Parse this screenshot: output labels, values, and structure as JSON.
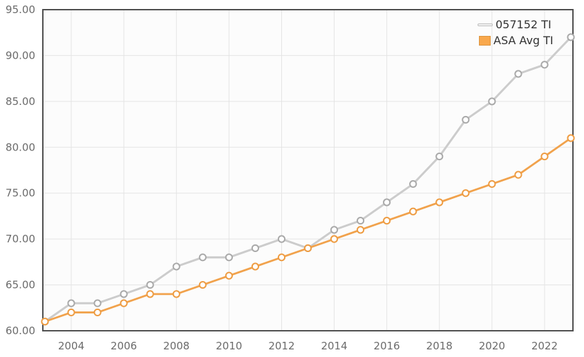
{
  "chart_data": {
    "type": "line",
    "x": [
      2003,
      2004,
      2005,
      2006,
      2007,
      2008,
      2009,
      2010,
      2011,
      2012,
      2013,
      2014,
      2015,
      2016,
      2017,
      2018,
      2019,
      2020,
      2021,
      2022,
      2023
    ],
    "series": [
      {
        "name": "057152 TI",
        "line_color": "#cccccc",
        "marker_ring_color": "#a9a9a9",
        "marker_fill": "#ffffff",
        "values": [
          61,
          63,
          63,
          64,
          65,
          67,
          68,
          68,
          69,
          70,
          69,
          71,
          72,
          74,
          76,
          79,
          83,
          85,
          88,
          89,
          92
        ]
      },
      {
        "name": "ASA Avg TI",
        "line_color": "#f1a24c",
        "marker_ring_color": "#ee9c42",
        "marker_fill": "#ffffff",
        "values": [
          61,
          62,
          62,
          63,
          64,
          64,
          65,
          66,
          67,
          68,
          69,
          70,
          71,
          72,
          73,
          74,
          75,
          76,
          77,
          79,
          81
        ]
      }
    ],
    "title": "",
    "xlabel": "",
    "ylabel": "",
    "ylim": [
      60,
      95
    ],
    "yticks": [
      60,
      65,
      70,
      75,
      80,
      85,
      90,
      95
    ],
    "ytick_labels": [
      "60.00",
      "65.00",
      "70.00",
      "75.00",
      "80.00",
      "85.00",
      "90.00",
      "95.00"
    ],
    "xticks": [
      2004,
      2006,
      2008,
      2010,
      2012,
      2014,
      2016,
      2018,
      2020,
      2022
    ],
    "xtick_labels": [
      "2004",
      "2006",
      "2008",
      "2010",
      "2012",
      "2014",
      "2016",
      "2018",
      "2020",
      "2022"
    ],
    "grid": true,
    "legend_position": "top-right"
  },
  "legend": {
    "items": [
      {
        "label": "057152 TI",
        "swatch": "line-swatch"
      },
      {
        "label": "ASA Avg TI",
        "swatch": "square-swatch"
      }
    ]
  },
  "colors": {
    "plot_background": "#fcfcfc",
    "page_background": "#ffffff",
    "gridline": "#e4e4e4",
    "axis_border": "#4f4f4f",
    "tick_label": "#6b6b6b",
    "legend_text": "#333333",
    "series_gray": "#cccccc",
    "series_orange": "#f1a24c"
  }
}
